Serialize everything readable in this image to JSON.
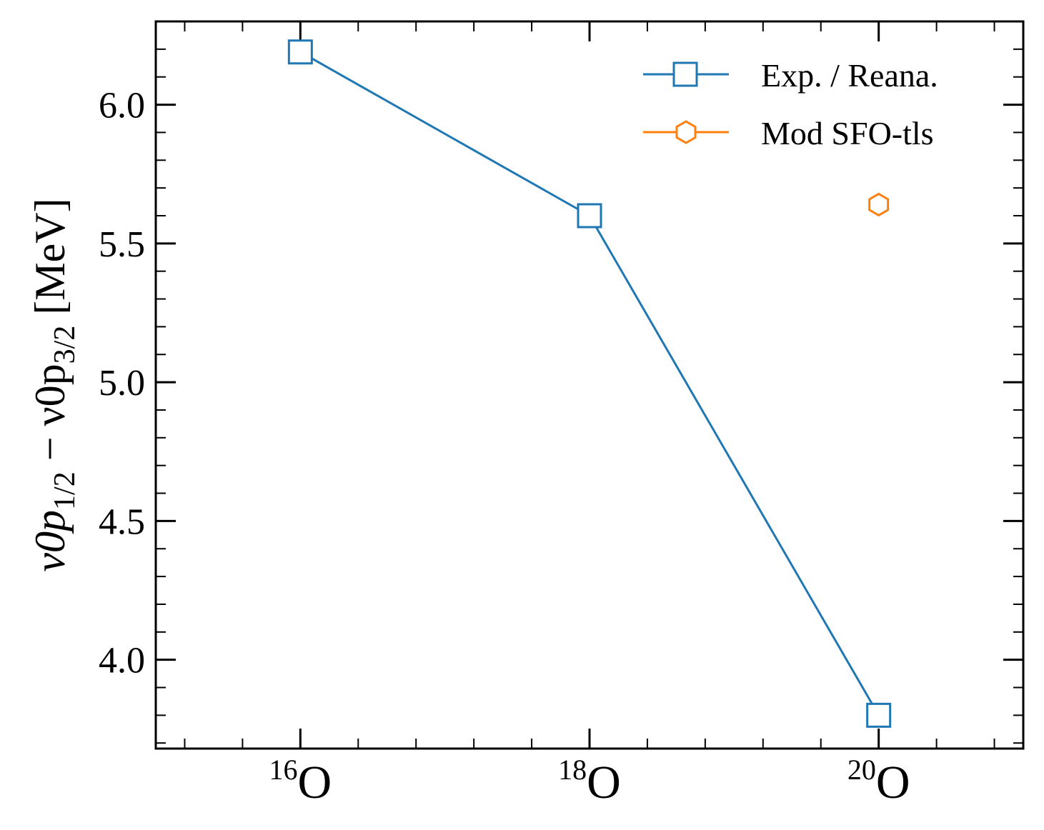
{
  "chart_data": {
    "type": "line",
    "x_categories": [
      {
        "mass": "16",
        "element": "O"
      },
      {
        "mass": "18",
        "element": "O"
      },
      {
        "mass": "20",
        "element": "O"
      }
    ],
    "xlim": [
      15,
      21
    ],
    "ylim": [
      3.68,
      6.3
    ],
    "yticks": [
      4.0,
      4.5,
      5.0,
      5.5,
      6.0
    ],
    "ytick_labels": [
      "4.0",
      "4.5",
      "5.0",
      "5.5",
      "6.0"
    ],
    "ylabel": {
      "prefix": "ν0p",
      "sub1": "1/2",
      "middle": " − ν0p",
      "sub2": "3/2",
      "suffix": " [MeV]"
    },
    "series": [
      {
        "name": "Exp. / Reana.",
        "color": "#1f77b4",
        "marker": "square-open",
        "line": true,
        "x": [
          16,
          18,
          20
        ],
        "y": [
          6.19,
          5.6,
          3.8
        ]
      },
      {
        "name": "Mod SFO-tls",
        "color": "#ff7f0e",
        "marker": "hexagon-open",
        "line": true,
        "x": [
          20
        ],
        "y": [
          5.64
        ]
      }
    ],
    "legend_position": "top-right",
    "grid": false
  }
}
